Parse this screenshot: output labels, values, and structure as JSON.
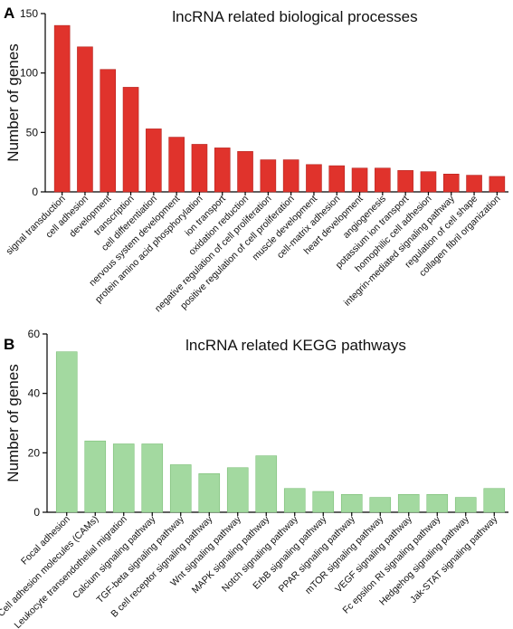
{
  "chart_data": [
    {
      "panel": "A",
      "type": "bar",
      "title": "lncRNA related biological processes",
      "ylabel": "Number of genes",
      "xlabel": "",
      "ylim": [
        0,
        150
      ],
      "yticks": [
        0,
        50,
        100,
        150
      ],
      "color": "#e0332c",
      "stroke": "#b52420",
      "categories": [
        "signal transduction",
        "cell adhesion",
        "development",
        "transcription",
        "cell differentiation",
        "nervous system development",
        "protein amino acid phosphorylation",
        "ion transport",
        "oxidation reduction",
        "negative regulation of cell proliferation",
        "positive regulation of cell proliferation",
        "muscle development",
        "cell-matrix adhesion",
        "heart development",
        "angiogenesis",
        "potassium ion transport",
        "homophilic cell adhesion",
        "integrin-mediated signaling pathway",
        "regulation of cell shape",
        "collagen fibril organization"
      ],
      "values": [
        140,
        122,
        103,
        88,
        53,
        46,
        40,
        37,
        34,
        27,
        27,
        23,
        22,
        20,
        20,
        18,
        17,
        15,
        14,
        13
      ]
    },
    {
      "panel": "B",
      "type": "bar",
      "title": "lncRNA related KEGG pathways",
      "ylabel": "Number of genes",
      "xlabel": "",
      "ylim": [
        0,
        60
      ],
      "yticks": [
        0,
        20,
        40,
        60
      ],
      "color": "#a3d9a0",
      "stroke": "#7cbf78",
      "categories": [
        "Focal adhesion",
        "Cell adhesion molecules (CAMs)",
        "Leukocyte transendothelial migration",
        "Calcium signaling pathway",
        "TGF-beta signaling pathway",
        "B cell receptor signaling pathway",
        "Wnt signaling pathway",
        "MAPK signaling pathway",
        "Notch signaling pathway",
        "ErbB signaling pathway",
        "PPAR signaling pathway",
        "mTOR signaling pathway",
        "VEGF signaling pathway",
        "Fc epsilon RI signaling pathway",
        "Hedgehog signaling pathway",
        "Jak-STAT signaling pathway"
      ],
      "values": [
        54,
        24,
        23,
        23,
        16,
        13,
        15,
        19,
        8,
        7,
        6,
        5,
        6,
        6,
        5,
        8
      ]
    }
  ]
}
